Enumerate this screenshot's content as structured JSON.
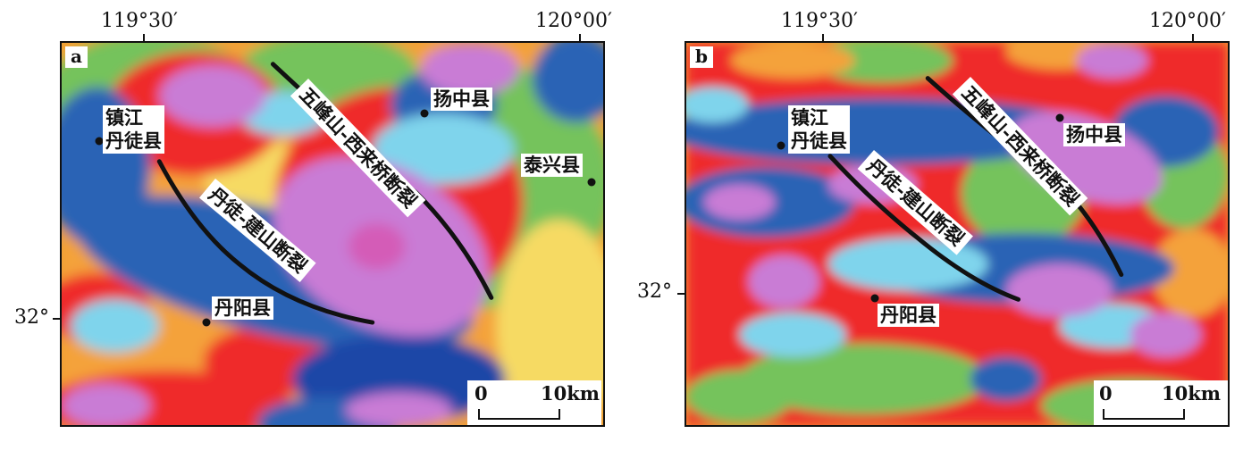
{
  "figure": {
    "longitude_labels": {
      "left": "119°30′",
      "right": "120°00′"
    },
    "latitude_label": "32°",
    "scale": {
      "zero": "0",
      "distance": "10km"
    },
    "colors": {
      "magenta_high": "#c97bd5",
      "pink_core": "#d45bb7",
      "red": "#ef2b2b",
      "orange": "#f4a23a",
      "yellow": "#f6da63",
      "green": "#74c35b",
      "cyan": "#7fd4ec",
      "blue": "#2c64b5",
      "dark_blue": "#1e47a7",
      "fault_line": "#111111"
    }
  },
  "panels": [
    {
      "id": "a",
      "letter": "a",
      "places": {
        "zhenjiang_danxu": [
          "镇江",
          "丹徒县"
        ],
        "yangzhong": "扬中县",
        "taixing": "泰兴县",
        "danyang": "丹阳县"
      },
      "faults": {
        "wufengshan_xilaiqiao": "五峰山-西来桥断裂",
        "dantu_jianshan": "丹徒-建山断裂"
      }
    },
    {
      "id": "b",
      "letter": "b",
      "places": {
        "zhenjiang_danxu": [
          "镇江",
          "丹徒县"
        ],
        "yangzhong": "扬中县",
        "danyang": "丹阳县"
      },
      "faults": {
        "wufengshan_xilaiqiao": "五峰山-西来桥断裂",
        "dantu_jianshan": "丹徒-建山断裂"
      }
    }
  ]
}
